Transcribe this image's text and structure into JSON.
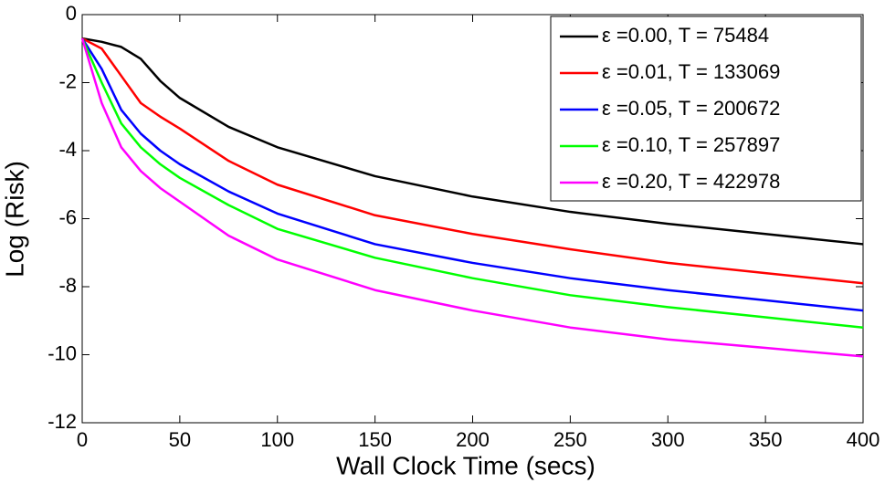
{
  "chart_data": {
    "type": "line",
    "xlabel": "Wall Clock Time (secs)",
    "ylabel": "Log (Risk)",
    "x": [
      0,
      10,
      20,
      30,
      40,
      50,
      75,
      100,
      150,
      200,
      250,
      300,
      350,
      400
    ],
    "series": [
      {
        "name": "ε =0.00, T = 75484",
        "color": "#000000",
        "values": [
          -0.7,
          -0.8,
          -0.95,
          -1.3,
          -1.95,
          -2.45,
          -3.3,
          -3.9,
          -4.75,
          -5.35,
          -5.8,
          -6.15,
          -6.45,
          -6.75
        ]
      },
      {
        "name": "ε =0.01, T = 133069",
        "color": "#ff0000",
        "values": [
          -0.7,
          -1.0,
          -1.8,
          -2.6,
          -3.0,
          -3.35,
          -4.3,
          -5.0,
          -5.9,
          -6.45,
          -6.9,
          -7.3,
          -7.6,
          -7.9
        ]
      },
      {
        "name": "ε =0.05, T = 200672",
        "color": "#0000ff",
        "values": [
          -0.7,
          -1.6,
          -2.8,
          -3.5,
          -4.0,
          -4.4,
          -5.2,
          -5.85,
          -6.75,
          -7.3,
          -7.75,
          -8.1,
          -8.4,
          -8.7
        ]
      },
      {
        "name": "ε =0.10, T = 257897",
        "color": "#00ff00",
        "values": [
          -0.7,
          -2.0,
          -3.2,
          -3.9,
          -4.4,
          -4.8,
          -5.6,
          -6.3,
          -7.15,
          -7.75,
          -8.25,
          -8.6,
          -8.9,
          -9.2
        ]
      },
      {
        "name": "ε =0.20, T = 422978",
        "color": "#ff00ff",
        "values": [
          -0.7,
          -2.6,
          -3.9,
          -4.6,
          -5.1,
          -5.5,
          -6.5,
          -7.2,
          -8.1,
          -8.7,
          -9.2,
          -9.55,
          -9.8,
          -10.05
        ]
      }
    ],
    "xlim": [
      0,
      400
    ],
    "xticks": [
      0,
      50,
      100,
      150,
      200,
      250,
      300,
      350,
      400
    ],
    "ylim": [
      -12,
      0
    ],
    "yticks": [
      -12,
      -10,
      -8,
      -6,
      -4,
      -2,
      0
    ],
    "legend": "upper right",
    "grid": false
  }
}
